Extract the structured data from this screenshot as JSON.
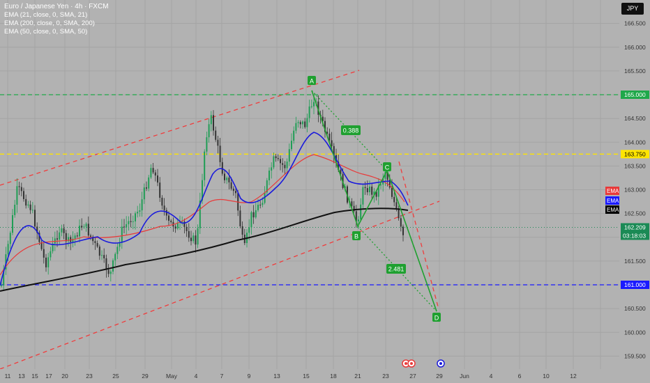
{
  "header": {
    "title": "Euro / Japanese Yen · 4h · FXCM",
    "indicators": [
      "EMA (21, close, 0, SMA, 21)",
      "EMA (200, close, 0, SMA, 200)",
      "EMA (50, close, 0, SMA, 50)"
    ],
    "currency": "JPY"
  },
  "chart_data": {
    "type": "candlestick",
    "symbol": "EURJPY",
    "timeframe": "4h",
    "y_axis": {
      "ticks": [
        "166.500",
        "166.000",
        "165.500",
        "165.000",
        "164.500",
        "164.000",
        "163.500",
        "163.000",
        "162.500",
        "162.000",
        "161.500",
        "161.000",
        "160.500",
        "160.000",
        "159.500"
      ],
      "range": [
        159.35,
        166.85
      ]
    },
    "x_axis": {
      "labels": [
        "11",
        "13",
        "15",
        "17",
        "20",
        "23",
        "25",
        "29",
        "May",
        "4",
        "7",
        "9",
        "13",
        "15",
        "18",
        "21",
        "23",
        "27",
        "29",
        "Jun",
        "4",
        "6",
        "10",
        "12"
      ]
    },
    "horizontal_lines": [
      {
        "price": 165.0,
        "color": "#1fa84a",
        "style": "dashed"
      },
      {
        "price": 163.75,
        "color": "#ffe500",
        "style": "dashed"
      },
      {
        "price": 161.0,
        "color": "#1a1aff",
        "style": "dashed"
      }
    ],
    "price_labels": [
      {
        "text": "165.000",
        "price": 165.0,
        "color": "#1fa84a"
      },
      {
        "text": "163.750",
        "price": 163.75,
        "color": "#ffe500"
      },
      {
        "text": "161.000",
        "price": 161.0,
        "color": "#1a1aff"
      },
      {
        "text": "162.209",
        "price": 162.209,
        "color": "#1a8a55"
      }
    ],
    "countdown": "03:18:03",
    "ema_badges": [
      {
        "text": "EMA",
        "color": "#e83a3a"
      },
      {
        "text": "EMA",
        "color": "#1a1aff"
      },
      {
        "text": "EMA",
        "color": "#000000"
      }
    ],
    "pattern": {
      "points": [
        {
          "label": "A",
          "price": 165.2
        },
        {
          "label": "B",
          "price": 162.15
        },
        {
          "label": "C",
          "price": 163.3
        },
        {
          "label": "D",
          "price": 160.35
        }
      ],
      "ratios": [
        {
          "text": "0.388"
        },
        {
          "text": "2.481"
        }
      ]
    }
  }
}
